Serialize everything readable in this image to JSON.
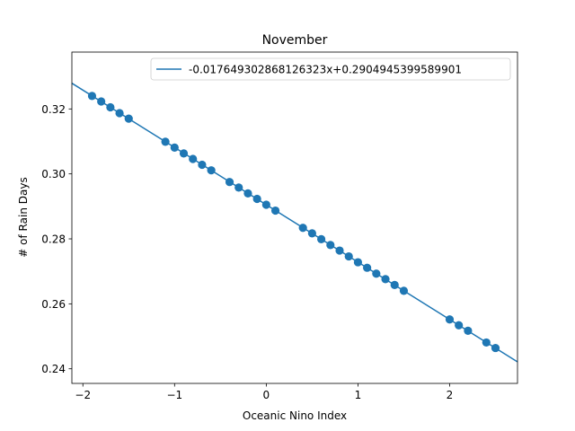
{
  "chart_data": {
    "type": "scatter",
    "title": "November",
    "xlabel": "Oceanic Nino Index",
    "ylabel": "# of Rain Days",
    "xlim": [
      -2.12,
      2.74
    ],
    "ylim": [
      0.2355,
      0.3375
    ],
    "xticks": [
      -2,
      -1,
      0,
      1,
      2
    ],
    "yticks": [
      0.24,
      0.26,
      0.28,
      0.3,
      0.32
    ],
    "ytick_labels": [
      "0.24",
      "0.26",
      "0.28",
      "0.30",
      "0.32"
    ],
    "xtick_labels": [
      "−2",
      "−1",
      "0",
      "1",
      "2"
    ],
    "grid": false,
    "legend_position": "top-right",
    "colors": {
      "series": "#1f77b4"
    },
    "fit_line": {
      "name": "-0.017649302868126323x+0.2904945399589901",
      "slope": -0.017649302868126323,
      "intercept": 0.2904945399589901
    },
    "series": [
      {
        "x": [
          -1.9,
          -1.8,
          -1.7,
          -1.6,
          -1.5,
          -1.1,
          -1.0,
          -0.9,
          -0.8,
          -0.7,
          -0.6,
          -0.4,
          -0.3,
          -0.2,
          -0.1,
          0.0,
          0.1,
          0.4,
          0.5,
          0.6,
          0.7,
          0.8,
          0.9,
          1.0,
          1.1,
          1.2,
          1.3,
          1.4,
          1.5,
          2.0,
          2.1,
          2.2,
          2.4,
          2.5
        ],
        "y": [
          0.324,
          0.3223,
          0.3205,
          0.3187,
          0.317,
          0.3099,
          0.3081,
          0.3063,
          0.3046,
          0.3028,
          0.3011,
          0.2975,
          0.2958,
          0.294,
          0.2923,
          0.2905,
          0.2887,
          0.2834,
          0.2817,
          0.2799,
          0.2781,
          0.2764,
          0.2746,
          0.2728,
          0.2711,
          0.2693,
          0.2676,
          0.2658,
          0.264,
          0.2552,
          0.2534,
          0.2517,
          0.2481,
          0.2464
        ]
      }
    ]
  }
}
